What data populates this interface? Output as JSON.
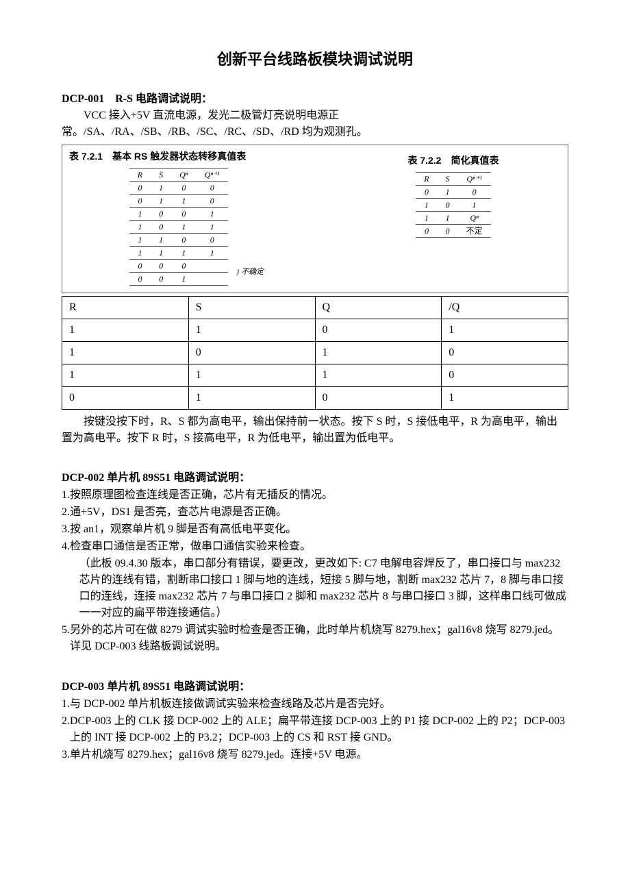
{
  "title": "创新平台线路板模块调试说明",
  "sec1": {
    "head": "DCP-001　R-S 电路调试说明：",
    "p1": "VCC 接入+5V 直流电源，发光二极管灯亮说明电源正常。/SA、/RA、/SB、/RB、/SC、/RC、/SD、/RD 均为观测孔。",
    "box": {
      "left_title": "表 7.2.1　基本 RS 触发器状态转移真值表",
      "left_h": [
        "R",
        "S",
        "Qⁿ",
        "Qⁿ⁺¹"
      ],
      "left_rows": [
        [
          "0",
          "1",
          "0",
          "0"
        ],
        [
          "0",
          "1",
          "1",
          "0"
        ],
        [
          "1",
          "0",
          "0",
          "1"
        ],
        [
          "1",
          "0",
          "1",
          "1"
        ],
        [
          "1",
          "1",
          "0",
          "0"
        ],
        [
          "1",
          "1",
          "1",
          "1"
        ],
        [
          "0",
          "0",
          "0",
          ""
        ],
        [
          "0",
          "0",
          "1",
          ""
        ]
      ],
      "left_note": "} 不确定",
      "right_title": "表 7.2.2　简化真值表",
      "right_h": [
        "R",
        "S",
        "Qⁿ⁺¹"
      ],
      "right_rows": [
        [
          "0",
          "1",
          "0"
        ],
        [
          "1",
          "0",
          "1"
        ],
        [
          "1",
          "1",
          "Qⁿ"
        ],
        [
          "0",
          "0",
          "不定"
        ]
      ]
    },
    "main_h": [
      "R",
      "S",
      "Q",
      "/Q"
    ],
    "main_rows": [
      [
        "1",
        "1",
        "0",
        "1"
      ],
      [
        "1",
        "0",
        "1",
        "0"
      ],
      [
        "1",
        "1",
        "1",
        "0"
      ],
      [
        "0",
        "1",
        "0",
        "1"
      ]
    ],
    "p2": "按键没按下时，R、S 都为高电平，输出保持前一状态。按下 S 时，S 接低电平，R 为高电平，输出置为高电平。按下 R 时，S 接高电平，R 为低电平，输出置为低电平。"
  },
  "sec2": {
    "head": "DCP-002 单片机 89S51 电路调试说明：",
    "items": [
      {
        "n": "1.",
        "t": "按照原理图检查连线是否正确，芯片有无插反的情况。"
      },
      {
        "n": "2.",
        "t": "通+5V，DS1 是否亮，查芯片电源是否正确。"
      },
      {
        "n": "3.",
        "t": "按 an1，观察单片机 9 脚是否有高低电平变化。"
      },
      {
        "n": "4.",
        "t": "检查串口通信是否正常，做串口通信实验来检查。"
      }
    ],
    "note": "（此板 09.4.30 版本，串口部分有错误，要更改，更改如下: C7 电解电容焊反了，串口接口与 max232 芯片的连线有错，割断串口接口 1 脚与地的连线，短接 5 脚与地，割断 max232 芯片 7，8 脚与串口接口的连线，连接 max232 芯片 7 与串口接口 2 脚和 max232 芯片 8 与串口接口 3 脚，这样串口线可做成一一对应的扁平带连接通信。）",
    "item5n": "5.",
    "item5t": "另外的芯片可在做 8279 调试实验时检查是否正确，此时单片机烧写 8279.hex；gal16v8 烧写 8279.jed。详见 DCP-003 线路板调试说明。"
  },
  "sec3": {
    "head": "DCP-003 单片机 89S51 电路调试说明：",
    "items": [
      {
        "n": "1.",
        "t": "与 DCP-002 单片机板连接做调试实验来检查线路及芯片是否完好。"
      },
      {
        "n": "2. ",
        "t": "DCP-003 上的 CLK 接 DCP-002 上的 ALE；扁平带连接 DCP-003 上的 P1 接 DCP-002 上的 P2；DCP-003 上的 INT 接 DCP-002 上的 P3.2；DCP-003 上的 CS 和 RST 接 GND。"
      },
      {
        "n": "3. ",
        "t": "单片机烧写 8279.hex；gal16v8 烧写 8279.jed。连接+5V 电源。"
      }
    ]
  }
}
